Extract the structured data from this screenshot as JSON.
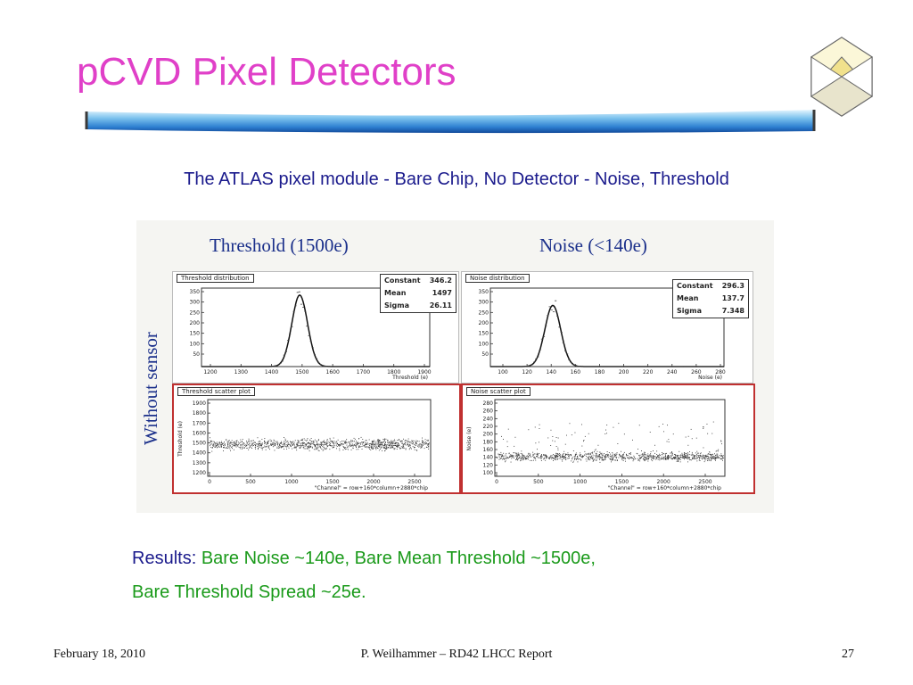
{
  "slide": {
    "title": "pCVD Pixel Detectors",
    "subtitle": "The ATLAS pixel module - Bare Chip, No Detector - Noise, Threshold"
  },
  "figure": {
    "heading_left": "Threshold (1500e)",
    "heading_right": "Noise (<140e)",
    "vertical_label": "Without sensor",
    "threshold_distribution": {
      "title": "Threshold distribution",
      "xlabel": "Threshold (e)",
      "x_ticks": [
        "1200",
        "1300",
        "1400",
        "1500",
        "1600",
        "1700",
        "1800",
        "1900"
      ],
      "y_ticks": [
        "350",
        "300",
        "250",
        "200",
        "150",
        "100",
        "50"
      ],
      "stats": [
        {
          "label": "Constant",
          "value": "346.2"
        },
        {
          "label": "Mean",
          "value": "1497"
        },
        {
          "label": "Sigma",
          "value": "26.11"
        }
      ]
    },
    "noise_distribution": {
      "title": "Noise distribution",
      "xlabel": "Noise (e)",
      "x_ticks": [
        "100",
        "120",
        "140",
        "160",
        "180",
        "200",
        "220",
        "240",
        "260",
        "280"
      ],
      "y_ticks": [
        "350",
        "300",
        "250",
        "200",
        "150",
        "100",
        "50"
      ],
      "stats": [
        {
          "label": "Constant",
          "value": "296.3"
        },
        {
          "label": "Mean",
          "value": "137.7"
        },
        {
          "label": "Sigma",
          "value": "7.348"
        }
      ]
    },
    "threshold_scatter": {
      "title": "Threshold scatter plot",
      "ylabel": "Threshold (e)",
      "xlabel": "\"Channel\" = row+160*column+2880*chip",
      "x_ticks": [
        "0",
        "500",
        "1000",
        "1500",
        "2000",
        "2500"
      ],
      "y_ticks": [
        "1900",
        "1800",
        "1700",
        "1600",
        "1500",
        "1400",
        "1300",
        "1200"
      ]
    },
    "noise_scatter": {
      "title": "Noise scatter plot",
      "ylabel": "Noise (e)",
      "xlabel": "\"Channel\" = row+160*column+2880*chip",
      "x_ticks": [
        "0",
        "500",
        "1000",
        "1500",
        "2000",
        "2500"
      ],
      "y_ticks": [
        "280",
        "260",
        "240",
        "220",
        "200",
        "180",
        "160",
        "140",
        "120",
        "100"
      ]
    }
  },
  "results": {
    "label": "Results:",
    "line1": "Bare Noise ~140e, Bare Mean Threshold ~1500e,",
    "line2": "Bare Threshold Spread ~25e."
  },
  "footer": {
    "date": "February 18, 2010",
    "center": "P. Weilhammer – RD42 LHCC Report",
    "page": "27"
  },
  "colors": {
    "title": "#e040c8",
    "subtitle": "#1a1a8c",
    "results_value": "#1a9a1a",
    "figure_heading": "#1a2f8a",
    "scatter_frame": "#c03030"
  },
  "icons": {
    "logo": "geometric-crystal-logo-icon",
    "title_bar": "blue-gradient-bar"
  }
}
